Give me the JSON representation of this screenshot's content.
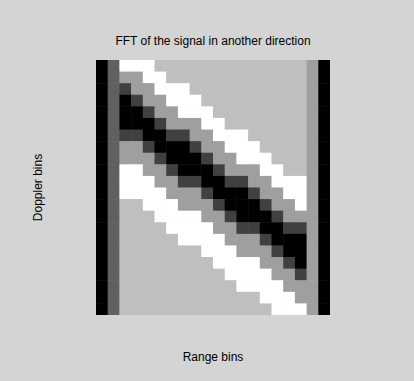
{
  "chart_data": {
    "type": "heatmap",
    "title": "FFT of the signal in another direction",
    "x_label": "Range bins",
    "y_label": "Doppler bins",
    "tick_labels": false,
    "cells": [
      [
        1,
        4,
        9,
        9,
        9,
        7,
        7,
        7,
        7,
        7,
        7,
        7,
        7,
        7,
        7,
        7,
        7,
        7,
        6,
        1
      ],
      [
        1,
        4,
        6,
        6,
        9,
        9,
        7,
        7,
        7,
        7,
        7,
        7,
        7,
        7,
        7,
        7,
        7,
        7,
        6,
        1
      ],
      [
        1,
        4,
        3,
        6,
        6,
        9,
        9,
        9,
        7,
        7,
        7,
        7,
        7,
        7,
        7,
        7,
        7,
        7,
        6,
        1
      ],
      [
        1,
        4,
        1,
        3,
        6,
        6,
        9,
        9,
        9,
        7,
        7,
        7,
        7,
        7,
        7,
        7,
        7,
        7,
        6,
        1
      ],
      [
        1,
        4,
        1,
        1,
        3,
        6,
        6,
        9,
        9,
        9,
        7,
        7,
        7,
        7,
        7,
        7,
        7,
        7,
        6,
        1
      ],
      [
        1,
        4,
        1,
        1,
        1,
        3,
        6,
        6,
        6,
        9,
        9,
        7,
        7,
        7,
        7,
        7,
        7,
        7,
        6,
        1
      ],
      [
        1,
        4,
        3,
        3,
        1,
        1,
        3,
        3,
        6,
        6,
        9,
        9,
        9,
        7,
        7,
        7,
        7,
        7,
        6,
        1
      ],
      [
        1,
        4,
        6,
        6,
        3,
        1,
        1,
        1,
        3,
        6,
        6,
        9,
        9,
        9,
        7,
        7,
        7,
        7,
        6,
        1
      ],
      [
        1,
        4,
        6,
        6,
        6,
        3,
        1,
        1,
        1,
        3,
        6,
        6,
        9,
        9,
        9,
        7,
        7,
        7,
        6,
        1
      ],
      [
        1,
        4,
        9,
        9,
        6,
        6,
        3,
        1,
        1,
        1,
        3,
        6,
        6,
        6,
        9,
        9,
        7,
        7,
        6,
        1
      ],
      [
        1,
        4,
        9,
        9,
        9,
        6,
        6,
        3,
        3,
        1,
        1,
        3,
        3,
        6,
        6,
        9,
        9,
        9,
        6,
        1
      ],
      [
        1,
        4,
        9,
        9,
        9,
        9,
        6,
        6,
        6,
        3,
        1,
        1,
        1,
        3,
        6,
        6,
        9,
        9,
        6,
        1
      ],
      [
        1,
        4,
        7,
        7,
        9,
        9,
        9,
        6,
        6,
        6,
        3,
        1,
        1,
        1,
        3,
        6,
        6,
        9,
        6,
        1
      ],
      [
        1,
        4,
        7,
        7,
        7,
        9,
        9,
        9,
        9,
        6,
        6,
        3,
        1,
        1,
        1,
        3,
        6,
        6,
        6,
        1
      ],
      [
        1,
        4,
        7,
        7,
        7,
        7,
        9,
        9,
        9,
        9,
        6,
        6,
        3,
        3,
        1,
        1,
        3,
        3,
        6,
        1
      ],
      [
        1,
        4,
        7,
        7,
        7,
        7,
        7,
        9,
        9,
        9,
        9,
        6,
        6,
        6,
        3,
        1,
        1,
        1,
        6,
        1
      ],
      [
        1,
        4,
        7,
        7,
        7,
        7,
        7,
        7,
        7,
        9,
        9,
        9,
        6,
        6,
        6,
        3,
        1,
        1,
        6,
        1
      ],
      [
        1,
        4,
        7,
        7,
        7,
        7,
        7,
        7,
        7,
        7,
        9,
        9,
        9,
        9,
        6,
        6,
        3,
        1,
        6,
        1
      ],
      [
        1,
        4,
        7,
        7,
        7,
        7,
        7,
        7,
        7,
        7,
        7,
        9,
        9,
        9,
        9,
        6,
        6,
        3,
        6,
        1
      ],
      [
        1,
        4,
        7,
        7,
        7,
        7,
        7,
        7,
        7,
        7,
        7,
        7,
        9,
        9,
        9,
        9,
        6,
        6,
        6,
        1
      ],
      [
        1,
        4,
        7,
        7,
        7,
        7,
        7,
        7,
        7,
        7,
        7,
        7,
        7,
        7,
        9,
        9,
        9,
        6,
        6,
        1
      ],
      [
        1,
        4,
        7,
        7,
        7,
        7,
        7,
        7,
        7,
        7,
        7,
        7,
        7,
        7,
        7,
        9,
        9,
        9,
        6,
        1
      ]
    ]
  }
}
